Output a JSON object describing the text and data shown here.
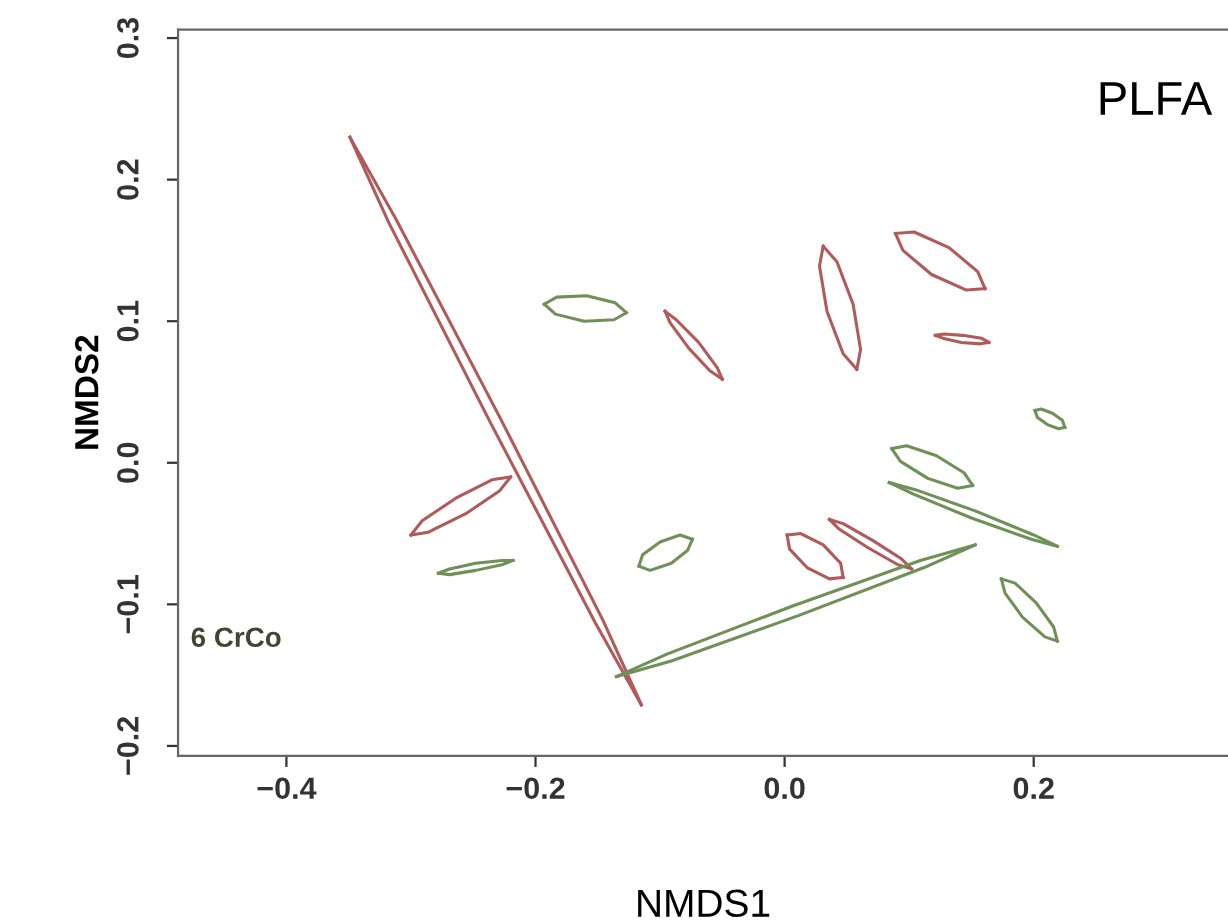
{
  "chart_data": {
    "type": "line",
    "xlabel": "NMDS1",
    "ylabel": "NMDS2",
    "annotations": [
      "PLFA",
      "6 CrCo"
    ],
    "xlim": [
      -0.487,
      0.356
    ],
    "ylim": [
      -0.207,
      0.306
    ],
    "xticks": [
      {
        "value": -0.4,
        "label": "−0.4"
      },
      {
        "value": -0.2,
        "label": "−0.2"
      },
      {
        "value": 0,
        "label": "0.0"
      },
      0.2
    ],
    "yticks": [
      {
        "value": -0.2,
        "label": "−0.2"
      },
      {
        "value": -0.1,
        "label": "−0.1"
      },
      {
        "value": 0,
        "label": "0.0"
      },
      0.1,
      0.2,
      0.3
    ],
    "grid": false,
    "legend": false,
    "marker": "none",
    "line_style": "solid",
    "series": [
      {
        "color": "#b05a5a",
        "x": [
          -0.349,
          -0.318,
          -0.236,
          -0.152,
          -0.115
        ],
        "values": [
          0.23,
          0.17,
          0.028,
          -0.113,
          -0.171
        ]
      },
      {
        "color": "#b05a5a",
        "x": [
          -0.349,
          -0.312,
          -0.228,
          -0.146,
          -0.115
        ],
        "values": [
          0.23,
          0.172,
          0.031,
          -0.111,
          -0.171
        ]
      },
      {
        "color": "#6f9158",
        "x": [
          -0.193,
          -0.184,
          -0.161,
          -0.137,
          -0.127
        ],
        "values": [
          0.112,
          0.105,
          0.1,
          0.101,
          0.106
        ]
      },
      {
        "color": "#6f9158",
        "x": [
          -0.193,
          -0.183,
          -0.159,
          -0.136,
          -0.127
        ],
        "values": [
          0.112,
          0.117,
          0.118,
          0.113,
          0.106
        ]
      },
      {
        "color": "#b05a5a",
        "x": [
          -0.096,
          -0.092,
          -0.077,
          -0.06,
          -0.05
        ],
        "values": [
          0.107,
          0.099,
          0.081,
          0.065,
          0.059
        ]
      },
      {
        "color": "#b05a5a",
        "x": [
          -0.096,
          -0.087,
          -0.069,
          -0.054,
          -0.05
        ],
        "values": [
          0.107,
          0.101,
          0.085,
          0.067,
          0.059
        ]
      },
      {
        "color": "#b05a5a",
        "x": [
          0.031,
          0.028,
          0.034,
          0.047,
          0.058
        ],
        "values": [
          0.153,
          0.139,
          0.107,
          0.077,
          0.066
        ]
      },
      {
        "color": "#b05a5a",
        "x": [
          0.031,
          0.042,
          0.055,
          0.061,
          0.058
        ],
        "values": [
          0.153,
          0.142,
          0.112,
          0.08,
          0.066
        ]
      },
      {
        "color": "#b05a5a",
        "x": [
          0.089,
          0.095,
          0.118,
          0.146,
          0.161
        ],
        "values": [
          0.162,
          0.15,
          0.133,
          0.122,
          0.123
        ]
      },
      {
        "color": "#b05a5a",
        "x": [
          0.089,
          0.104,
          0.132,
          0.155,
          0.161
        ],
        "values": [
          0.162,
          0.163,
          0.152,
          0.135,
          0.123
        ]
      },
      {
        "color": "#b05a5a",
        "x": [
          0.121,
          0.127,
          0.142,
          0.157,
          0.164
        ],
        "values": [
          0.09,
          0.088,
          0.085,
          0.084,
          0.085
        ]
      },
      {
        "color": "#b05a5a",
        "x": [
          0.121,
          0.128,
          0.143,
          0.158,
          0.164
        ],
        "values": [
          0.09,
          0.091,
          0.09,
          0.088,
          0.085
        ]
      },
      {
        "color": "#6f9158",
        "x": [
          0.201,
          0.203,
          0.211,
          0.22,
          0.225
        ],
        "values": [
          0.037,
          0.032,
          0.027,
          0.024,
          0.025
        ]
      },
      {
        "color": "#6f9158",
        "x": [
          0.201,
          0.206,
          0.215,
          0.223,
          0.225
        ],
        "values": [
          0.037,
          0.038,
          0.035,
          0.03,
          0.025
        ]
      },
      {
        "color": "#6f9158",
        "x": [
          0.086,
          0.093,
          0.115,
          0.139,
          0.151
        ],
        "values": [
          0.01,
          0.001,
          -0.011,
          -0.018,
          -0.016
        ]
      },
      {
        "color": "#6f9158",
        "x": [
          0.086,
          0.098,
          0.122,
          0.144,
          0.151
        ],
        "values": [
          0.01,
          0.012,
          0.005,
          -0.007,
          -0.016
        ]
      },
      {
        "color": "#6f9158",
        "x": [
          0.084,
          0.103,
          0.15,
          0.198,
          0.219
        ],
        "values": [
          -0.014,
          -0.022,
          -0.039,
          -0.054,
          -0.059
        ]
      },
      {
        "color": "#6f9158",
        "x": [
          0.084,
          0.105,
          0.153,
          0.2,
          0.219
        ],
        "values": [
          -0.014,
          -0.019,
          -0.034,
          -0.051,
          -0.059
        ]
      },
      {
        "color": "#6f9158",
        "x": [
          0.174,
          0.177,
          0.191,
          0.209,
          0.219
        ],
        "values": [
          -0.082,
          -0.092,
          -0.109,
          -0.123,
          -0.126
        ]
      },
      {
        "color": "#6f9158",
        "x": [
          0.174,
          0.185,
          0.202,
          0.216,
          0.219
        ],
        "values": [
          -0.082,
          -0.085,
          -0.099,
          -0.116,
          -0.126
        ]
      },
      {
        "color": "#b05a5a",
        "x": [
          0.036,
          0.044,
          0.067,
          0.091,
          0.102
        ],
        "values": [
          -0.04,
          -0.047,
          -0.06,
          -0.072,
          -0.075
        ]
      },
      {
        "color": "#b05a5a",
        "x": [
          0.036,
          0.047,
          0.071,
          0.094,
          0.102
        ],
        "values": [
          -0.04,
          -0.043,
          -0.055,
          -0.068,
          -0.075
        ]
      },
      {
        "color": "#b05a5a",
        "x": [
          0.002,
          0.004,
          0.018,
          0.036,
          0.047
        ],
        "values": [
          -0.051,
          -0.061,
          -0.074,
          -0.082,
          -0.081
        ]
      },
      {
        "color": "#b05a5a",
        "x": [
          0.002,
          0.013,
          0.031,
          0.045,
          0.047
        ],
        "values": [
          -0.051,
          -0.05,
          -0.058,
          -0.071,
          -0.081
        ]
      },
      {
        "color": "#6f9158",
        "x": [
          -0.135,
          -0.091,
          0.011,
          0.112,
          0.153
        ],
        "values": [
          -0.151,
          -0.14,
          -0.108,
          -0.074,
          -0.058
        ]
      },
      {
        "color": "#6f9158",
        "x": [
          -0.135,
          -0.094,
          0.007,
          0.109,
          0.153
        ],
        "values": [
          -0.151,
          -0.135,
          -0.101,
          -0.069,
          -0.058
        ]
      },
      {
        "color": "#6f9158",
        "x": [
          -0.117,
          -0.108,
          -0.091,
          -0.078,
          -0.074
        ],
        "values": [
          -0.073,
          -0.076,
          -0.071,
          -0.062,
          -0.054
        ]
      },
      {
        "color": "#6f9158",
        "x": [
          -0.117,
          -0.114,
          -0.1,
          -0.084,
          -0.074
        ],
        "values": [
          -0.073,
          -0.065,
          -0.056,
          -0.051,
          -0.054
        ]
      },
      {
        "color": "#b05a5a",
        "x": [
          -0.3,
          -0.286,
          -0.256,
          -0.229,
          -0.22
        ],
        "values": [
          -0.051,
          -0.049,
          -0.036,
          -0.02,
          -0.01
        ]
      },
      {
        "color": "#b05a5a",
        "x": [
          -0.3,
          -0.291,
          -0.264,
          -0.235,
          -0.22
        ],
        "values": [
          -0.051,
          -0.041,
          -0.025,
          -0.012,
          -0.01
        ]
      },
      {
        "color": "#6f9158",
        "x": [
          -0.278,
          -0.269,
          -0.248,
          -0.227,
          -0.218
        ],
        "values": [
          -0.078,
          -0.079,
          -0.076,
          -0.072,
          -0.069
        ]
      },
      {
        "color": "#6f9158",
        "x": [
          -0.278,
          -0.269,
          -0.248,
          -0.227,
          -0.218
        ],
        "values": [
          -0.078,
          -0.075,
          -0.071,
          -0.069,
          -0.069
        ]
      }
    ]
  }
}
